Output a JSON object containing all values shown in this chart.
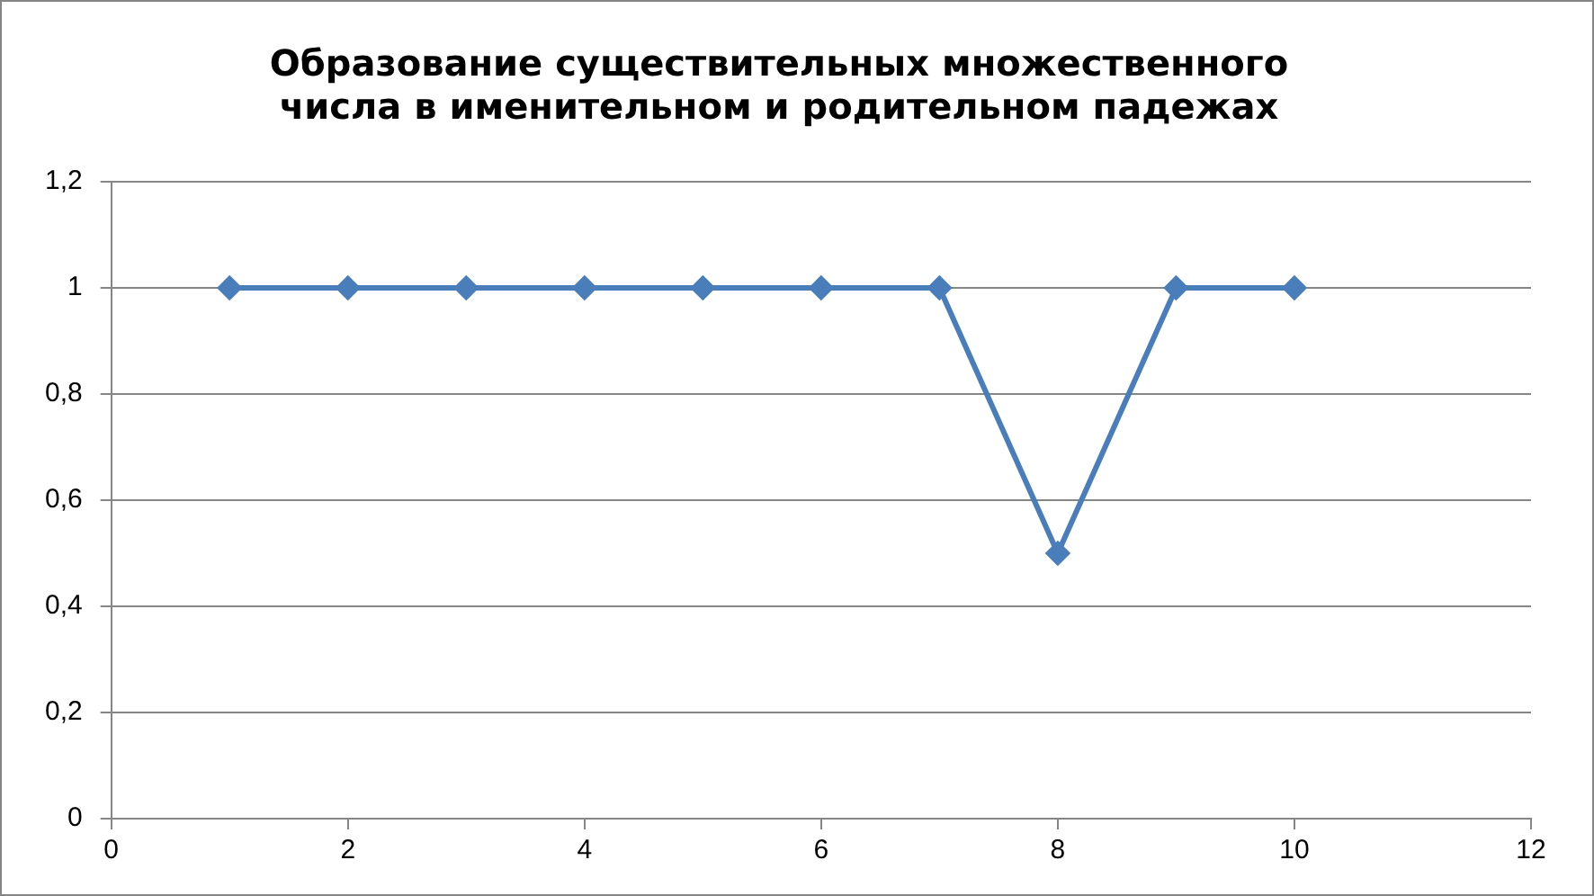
{
  "chart_data": {
    "type": "line",
    "title": "Образование существительных множественного\nчисла в именительном и родительном падежах",
    "x": [
      1,
      2,
      3,
      4,
      5,
      6,
      7,
      8,
      9,
      10
    ],
    "series": [
      {
        "color": "#4a7ebb",
        "values": [
          1,
          1,
          1,
          1,
          1,
          1,
          1,
          0.5,
          1,
          1
        ]
      }
    ],
    "xlim": [
      0,
      12
    ],
    "xticks": [
      0,
      2,
      4,
      6,
      8,
      10,
      12
    ],
    "ylim": [
      0,
      1.2
    ],
    "yticks": [
      0,
      {
        "value": 0.2,
        "label": "0,2"
      },
      {
        "value": 0.4,
        "label": "0,4"
      },
      {
        "value": 0.6,
        "label": "0,6"
      },
      {
        "value": 0.8,
        "label": "0,8"
      },
      1,
      {
        "value": 1.2,
        "label": "1,2"
      }
    ],
    "grid": "y",
    "legend": false,
    "marker": "diamond",
    "line_style": "solid"
  }
}
